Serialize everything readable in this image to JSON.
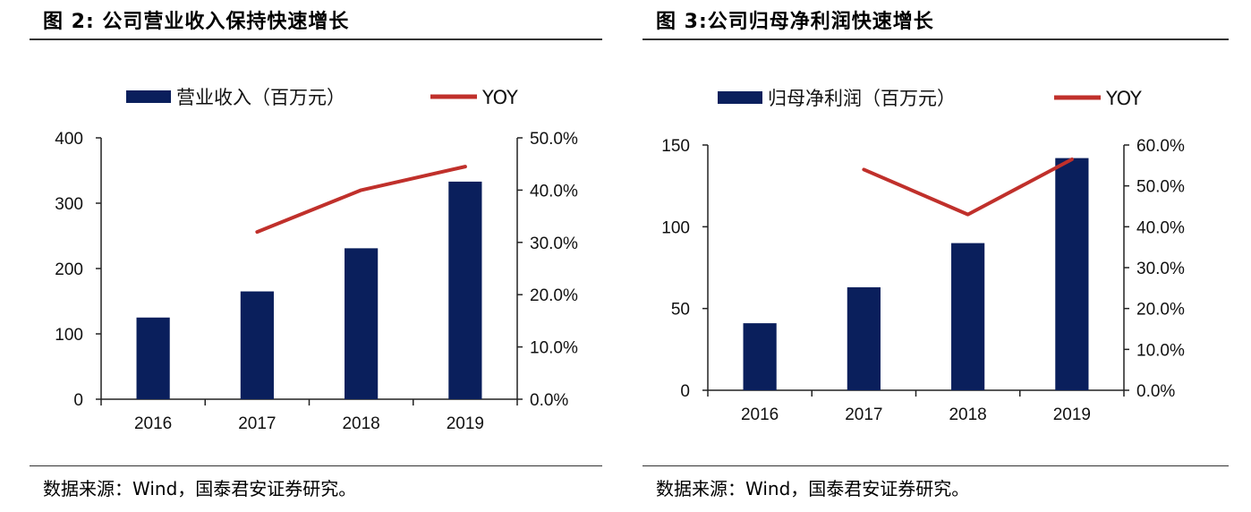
{
  "panels": [
    {
      "title": "图 2:  公司营业收入保持快速增长",
      "source": "数据来源：Wind，国泰君安证券研究。"
    },
    {
      "title": "图 3:公司归母净利润快速增长",
      "source": "数据来源：Wind，国泰君安证券研究。"
    }
  ],
  "chart_data": [
    {
      "type": "bar",
      "categories": [
        "2016",
        "2017",
        "2018",
        "2019"
      ],
      "series": [
        {
          "name": "营业收入（百万元）",
          "type": "bar",
          "axis": "left",
          "values": [
            125,
            165,
            231,
            333
          ],
          "color": "#0a1f5c"
        },
        {
          "name": "YOY",
          "type": "line",
          "axis": "right",
          "values": [
            null,
            32.0,
            40.0,
            44.5
          ],
          "color": "#c0302b"
        }
      ],
      "ylim": [
        0,
        400
      ],
      "yticks": [
        "400",
        "300",
        "200",
        "100",
        "0"
      ],
      "y2lim": [
        0,
        50
      ],
      "y2ticks": [
        "50.0%",
        "40.0%",
        "30.0%",
        "20.0%",
        "10.0%",
        "0.0%"
      ],
      "legend": "top"
    },
    {
      "type": "bar",
      "categories": [
        "2016",
        "2017",
        "2018",
        "2019"
      ],
      "series": [
        {
          "name": "归母净利润（百万元）",
          "type": "bar",
          "axis": "left",
          "values": [
            41,
            63,
            90,
            142
          ],
          "color": "#0a1f5c"
        },
        {
          "name": "YOY",
          "type": "line",
          "axis": "right",
          "values": [
            null,
            54.0,
            43.0,
            56.5
          ],
          "color": "#c0302b"
        }
      ],
      "ylim": [
        0,
        150
      ],
      "yticks": [
        "150",
        "100",
        "50",
        "0"
      ],
      "y2lim": [
        0,
        60
      ],
      "y2ticks": [
        "60.0%",
        "50.0%",
        "40.0%",
        "30.0%",
        "20.0%",
        "10.0%",
        "0.0%"
      ],
      "legend": "top"
    }
  ]
}
